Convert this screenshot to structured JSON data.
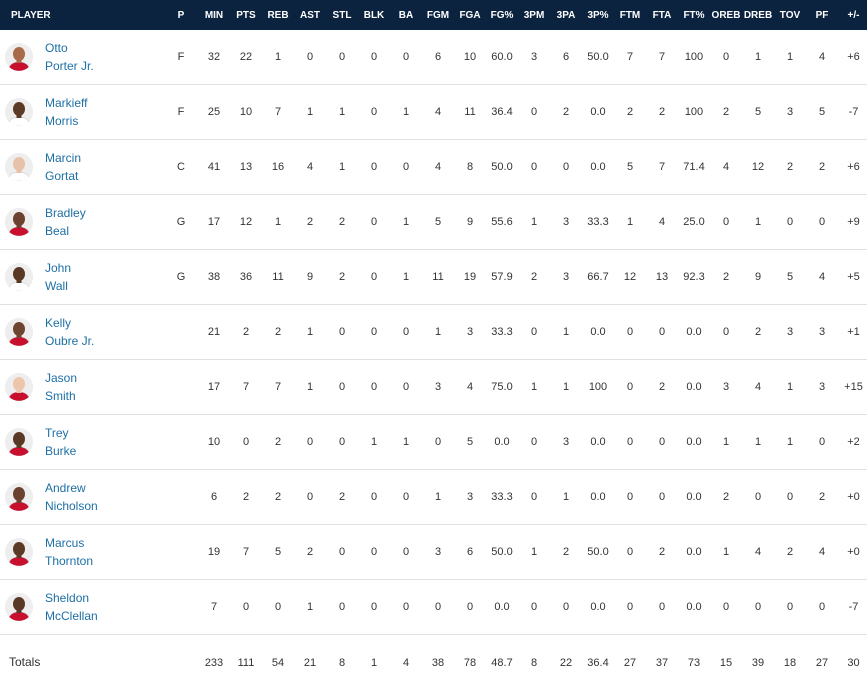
{
  "columns": [
    "PLAYER",
    "P",
    "MIN",
    "PTS",
    "REB",
    "AST",
    "STL",
    "BLK",
    "BA",
    "FGM",
    "FGA",
    "FG%",
    "3PM",
    "3PA",
    "3P%",
    "FTM",
    "FTA",
    "FT%",
    "OREB",
    "DREB",
    "TOV",
    "PF",
    "+/-"
  ],
  "colors": {
    "header_bg": "#0c2340",
    "header_text": "#ffffff",
    "player_link": "#1d6fa5",
    "row_border": "#e0e0e0"
  },
  "players": [
    {
      "first": "Otto",
      "last": "Porter Jr.",
      "skin": "#a86a48",
      "jersey": "#c8102e",
      "stats": [
        "F",
        "32",
        "22",
        "1",
        "0",
        "0",
        "0",
        "0",
        "6",
        "10",
        "60.0",
        "3",
        "6",
        "50.0",
        "7",
        "7",
        "100",
        "0",
        "1",
        "1",
        "4",
        "+6"
      ]
    },
    {
      "first": "Markieff",
      "last": "Morris",
      "skin": "#5c3a26",
      "jersey": "#ffffff",
      "stats": [
        "F",
        "25",
        "10",
        "7",
        "1",
        "1",
        "0",
        "1",
        "4",
        "11",
        "36.4",
        "0",
        "2",
        "0.0",
        "2",
        "2",
        "100",
        "2",
        "5",
        "3",
        "5",
        "-7"
      ]
    },
    {
      "first": "Marcin",
      "last": "Gortat",
      "skin": "#e8c2a8",
      "jersey": "#ffffff",
      "stats": [
        "C",
        "41",
        "13",
        "16",
        "4",
        "1",
        "0",
        "0",
        "4",
        "8",
        "50.0",
        "0",
        "0",
        "0.0",
        "5",
        "7",
        "71.4",
        "4",
        "12",
        "2",
        "2",
        "+6"
      ]
    },
    {
      "first": "Bradley",
      "last": "Beal",
      "skin": "#6b4230",
      "jersey": "#c8102e",
      "stats": [
        "G",
        "17",
        "12",
        "1",
        "2",
        "2",
        "0",
        "1",
        "5",
        "9",
        "55.6",
        "1",
        "3",
        "33.3",
        "1",
        "4",
        "25.0",
        "0",
        "1",
        "0",
        "0",
        "+9"
      ]
    },
    {
      "first": "John",
      "last": "Wall",
      "skin": "#5a3826",
      "jersey": "#ffffff",
      "stats": [
        "G",
        "38",
        "36",
        "11",
        "9",
        "2",
        "0",
        "1",
        "11",
        "19",
        "57.9",
        "2",
        "3",
        "66.7",
        "12",
        "13",
        "92.3",
        "2",
        "9",
        "5",
        "4",
        "+5"
      ]
    },
    {
      "first": "Kelly",
      "last": "Oubre Jr.",
      "skin": "#6e4530",
      "jersey": "#c8102e",
      "stats": [
        "",
        "21",
        "2",
        "2",
        "1",
        "0",
        "0",
        "0",
        "1",
        "3",
        "33.3",
        "0",
        "1",
        "0.0",
        "0",
        "0",
        "0.0",
        "0",
        "2",
        "3",
        "3",
        "+1"
      ]
    },
    {
      "first": "Jason",
      "last": "Smith",
      "skin": "#ecc6ab",
      "jersey": "#c8102e",
      "stats": [
        "",
        "17",
        "7",
        "7",
        "1",
        "0",
        "0",
        "0",
        "3",
        "4",
        "75.0",
        "1",
        "1",
        "100",
        "0",
        "2",
        "0.0",
        "3",
        "4",
        "1",
        "3",
        "+15"
      ]
    },
    {
      "first": "Trey",
      "last": "Burke",
      "skin": "#5a3826",
      "jersey": "#c8102e",
      "stats": [
        "",
        "10",
        "0",
        "2",
        "0",
        "0",
        "1",
        "1",
        "0",
        "5",
        "0.0",
        "0",
        "3",
        "0.0",
        "0",
        "0",
        "0.0",
        "1",
        "1",
        "1",
        "0",
        "+2"
      ]
    },
    {
      "first": "Andrew",
      "last": "Nicholson",
      "skin": "#6b4230",
      "jersey": "#c8102e",
      "stats": [
        "",
        "6",
        "2",
        "2",
        "0",
        "2",
        "0",
        "0",
        "1",
        "3",
        "33.3",
        "0",
        "1",
        "0.0",
        "0",
        "0",
        "0.0",
        "2",
        "0",
        "0",
        "2",
        "+0"
      ]
    },
    {
      "first": "Marcus",
      "last": "Thornton",
      "skin": "#5c3a26",
      "jersey": "#c8102e",
      "stats": [
        "",
        "19",
        "7",
        "5",
        "2",
        "0",
        "0",
        "0",
        "3",
        "6",
        "50.0",
        "1",
        "2",
        "50.0",
        "0",
        "2",
        "0.0",
        "1",
        "4",
        "2",
        "4",
        "+0"
      ]
    },
    {
      "first": "Sheldon",
      "last": "McClellan",
      "skin": "#5a3826",
      "jersey": "#c8102e",
      "stats": [
        "",
        "7",
        "0",
        "0",
        "1",
        "0",
        "0",
        "0",
        "0",
        "0",
        "0.0",
        "0",
        "0",
        "0.0",
        "0",
        "0",
        "0.0",
        "0",
        "0",
        "0",
        "0",
        "-7"
      ]
    }
  ],
  "totals": {
    "label": "Totals",
    "stats": [
      "",
      "233",
      "111",
      "54",
      "21",
      "8",
      "1",
      "4",
      "38",
      "78",
      "48.7",
      "8",
      "22",
      "36.4",
      "27",
      "37",
      "73",
      "15",
      "39",
      "18",
      "27",
      "30"
    ]
  }
}
